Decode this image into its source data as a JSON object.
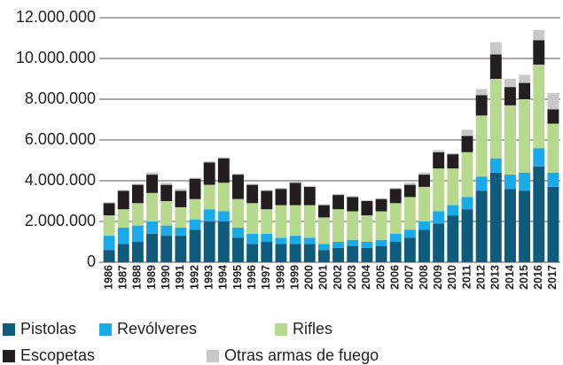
{
  "chart_data": {
    "type": "stacked_bar",
    "categories": [
      "1986",
      "1987",
      "1988",
      "1989",
      "1990",
      "1991",
      "1992",
      "1993",
      "1994",
      "1995",
      "1996",
      "1997",
      "1998",
      "1999",
      "2000",
      "2001",
      "2002",
      "2003",
      "2004",
      "2005",
      "2006",
      "2007",
      "2008",
      "2009",
      "2010",
      "2011",
      "2012",
      "2013",
      "2014",
      "2015",
      "2016",
      "2017"
    ],
    "series": [
      {
        "name": "Pistolas",
        "color": "#0f5b7c",
        "values": [
          600000,
          900000,
          1000000,
          1400000,
          1300000,
          1300000,
          1600000,
          2000000,
          2000000,
          1200000,
          900000,
          1000000,
          900000,
          900000,
          900000,
          600000,
          700000,
          800000,
          700000,
          800000,
          1000000,
          1200000,
          1600000,
          1900000,
          2300000,
          2600000,
          3500000,
          4400000,
          3600000,
          3500000,
          4700000,
          3700000
        ]
      },
      {
        "name": "Revólveres",
        "color": "#1aaae8",
        "values": [
          700000,
          800000,
          800000,
          600000,
          500000,
          400000,
          500000,
          600000,
          500000,
          500000,
          500000,
          400000,
          300000,
          400000,
          300000,
          300000,
          300000,
          300000,
          300000,
          300000,
          400000,
          400000,
          400000,
          600000,
          500000,
          600000,
          700000,
          700000,
          700000,
          900000,
          900000,
          700000
        ]
      },
      {
        "name": "Rifles",
        "color": "#b6d98e",
        "values": [
          1000000,
          900000,
          1100000,
          1400000,
          1200000,
          1000000,
          1000000,
          1200000,
          1400000,
          1400000,
          1500000,
          1200000,
          1600000,
          1500000,
          1600000,
          1300000,
          1600000,
          1400000,
          1300000,
          1400000,
          1500000,
          1600000,
          1700000,
          2100000,
          1800000,
          2200000,
          3000000,
          3900000,
          3400000,
          3600000,
          4100000,
          2400000
        ]
      },
      {
        "name": "Escopetas",
        "color": "#231f20",
        "values": [
          600000,
          900000,
          900000,
          900000,
          800000,
          800000,
          1000000,
          1100000,
          1200000,
          1200000,
          900000,
          900000,
          800000,
          1100000,
          900000,
          600000,
          700000,
          700000,
          700000,
          600000,
          700000,
          600000,
          600000,
          800000,
          700000,
          800000,
          1000000,
          1200000,
          900000,
          800000,
          1200000,
          700000
        ]
      },
      {
        "name": "Otras armas de fuego",
        "color": "#c8c8c8",
        "values": [
          50000,
          50000,
          50000,
          100000,
          100000,
          100000,
          50000,
          50000,
          50000,
          50000,
          50000,
          50000,
          50000,
          50000,
          50000,
          50000,
          50000,
          50000,
          50000,
          50000,
          50000,
          100000,
          100000,
          100000,
          50000,
          300000,
          300000,
          600000,
          400000,
          400000,
          500000,
          800000
        ]
      }
    ],
    "ylim": [
      0,
      12000000
    ],
    "yticks": [
      0,
      {
        "value": 2000000,
        "label": "2.000.000"
      },
      {
        "value": 4000000,
        "label": "4.000.000"
      },
      {
        "value": 6000000,
        "label": "6.000.000"
      },
      {
        "value": 8000000,
        "label": "8.000.000"
      },
      {
        "value": 10000000,
        "label": "10.000.000"
      },
      {
        "value": 12000000,
        "label": "12.000.000"
      }
    ],
    "grid": true
  }
}
